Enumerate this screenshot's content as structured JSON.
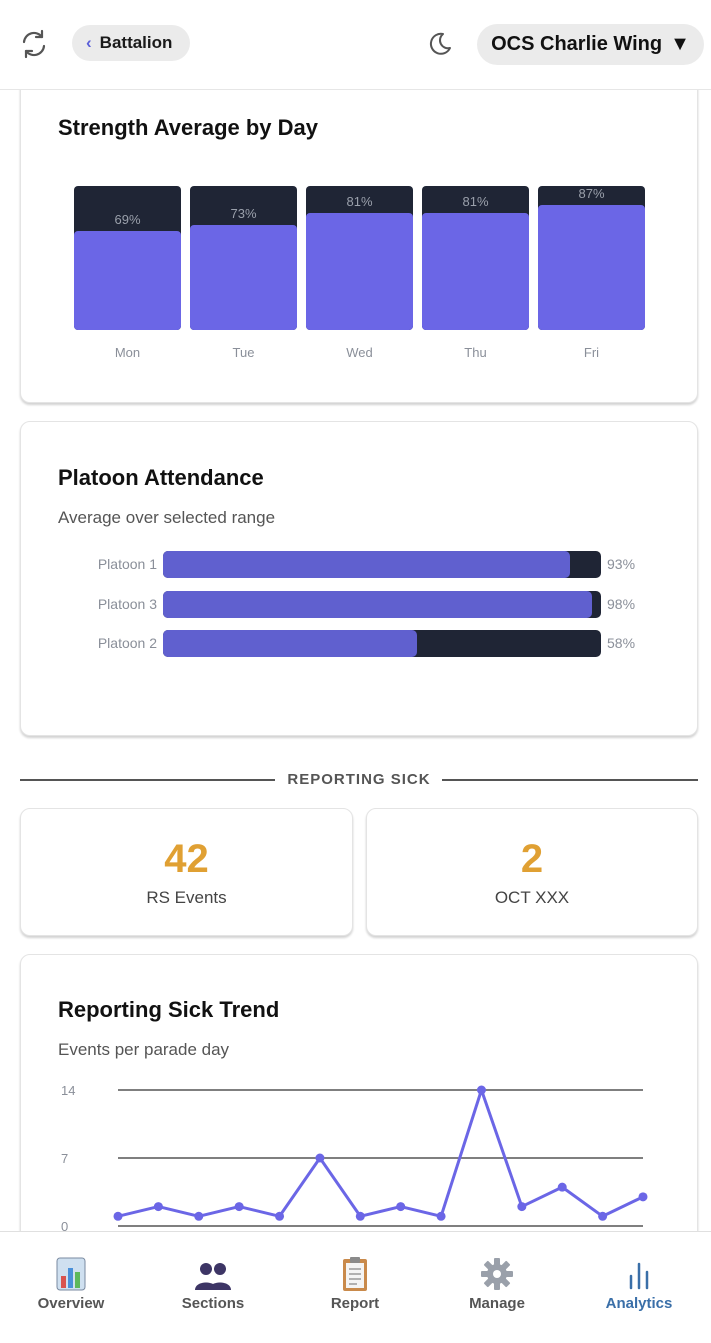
{
  "header": {
    "back_label": "Battalion",
    "back_chevron": "‹",
    "unit_name": "OCS Charlie Wing",
    "unit_caret": "▼",
    "icons": [
      "refresh-icon",
      "moon-icon",
      "chevron-left-icon"
    ]
  },
  "strength": {
    "title": "Strength Average by Day",
    "chart_data": {
      "type": "bar",
      "categories": [
        "Mon",
        "Tue",
        "Wed",
        "Thu",
        "Fri"
      ],
      "values": [
        69,
        73,
        81,
        81,
        87
      ],
      "value_labels": [
        "69%",
        "73%",
        "81%",
        "81%",
        "87%"
      ],
      "ylim": [
        0,
        100
      ],
      "colors": {
        "fill": "#6b66e6",
        "track": "#1f2535"
      }
    }
  },
  "platoon": {
    "title": "Platoon Attendance",
    "subtitle": "Average over selected range",
    "chart_data": {
      "type": "bar",
      "orientation": "horizontal",
      "categories": [
        "Platoon 1",
        "Platoon 3",
        "Platoon 2"
      ],
      "values": [
        93,
        98,
        58
      ],
      "value_labels": [
        "93%",
        "98%",
        "58%"
      ],
      "xlim": [
        0,
        100
      ],
      "colors": {
        "fill": "#6060cf",
        "track": "#1f2535"
      }
    }
  },
  "reporting_sick": {
    "section_label": "REPORTING SICK",
    "stats": [
      {
        "value": "42",
        "label": "RS Events"
      },
      {
        "value": "2",
        "label": "OCT XXX"
      }
    ]
  },
  "trend": {
    "title": "Reporting Sick Trend",
    "subtitle": "Events per parade day",
    "chart_data": {
      "type": "line",
      "y_ticks": [
        "14",
        "7",
        "0"
      ],
      "ylim": [
        0,
        14
      ],
      "values": [
        1,
        2,
        1,
        2,
        1,
        7,
        1,
        2,
        1,
        14,
        2,
        4,
        1,
        3
      ],
      "colors": {
        "line": "#6b66e6",
        "grid": "#333333"
      }
    }
  },
  "nav": {
    "items": [
      {
        "label": "Overview",
        "icon": "overview-chart-icon"
      },
      {
        "label": "Sections",
        "icon": "sections-people-icon"
      },
      {
        "label": "Report",
        "icon": "clipboard-icon"
      },
      {
        "label": "Manage",
        "icon": "gear-icon"
      },
      {
        "label": "Analytics",
        "icon": "analytics-bars-icon",
        "active": true
      }
    ]
  }
}
